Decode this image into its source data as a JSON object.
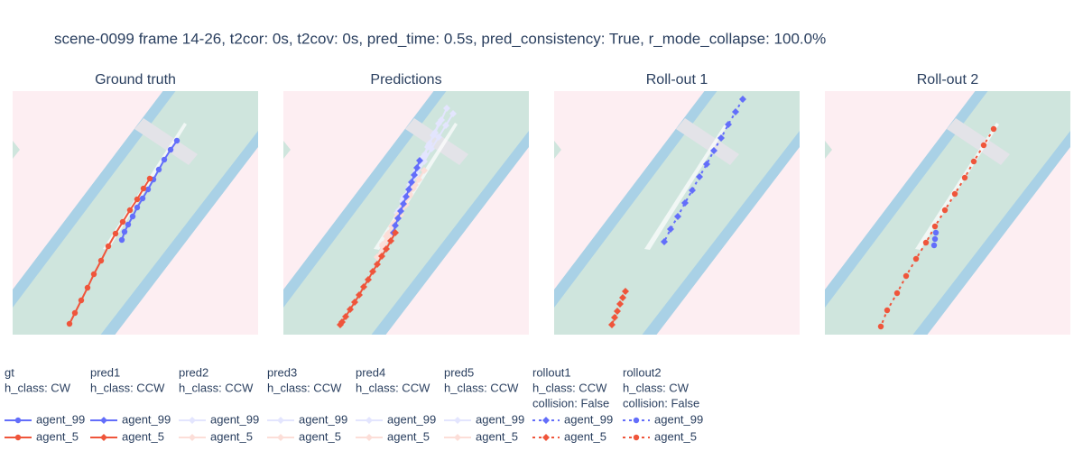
{
  "title": "scene-0099 frame 14-26, t2cor: 0s, t2cov: 0s, pred_time: 0.5s, pred_consistency: True, r_mode_collapse: 100.0%",
  "subplots": [
    {
      "title": "Ground truth",
      "xlim": [
        0,
        272
      ],
      "ylim": [
        270,
        0
      ],
      "series": [
        {
          "name": "agent_99",
          "color": "#636efa",
          "dash": "solid",
          "symbol": "circle",
          "x": [
            182,
            175,
            168,
            162,
            156,
            150,
            144,
            138,
            133,
            128,
            124,
            121
          ],
          "y": [
            55,
            65,
            76,
            87,
            98,
            109,
            119,
            129,
            139,
            148,
            156,
            165
          ]
        },
        {
          "name": "agent_5",
          "color": "#ef553b",
          "dash": "solid",
          "symbol": "circle",
          "x": [
            152,
            145,
            138,
            130,
            122,
            114,
            106,
            98,
            90,
            83,
            76,
            69,
            63
          ],
          "y": [
            97,
            108,
            120,
            132,
            145,
            158,
            172,
            188,
            203,
            218,
            232,
            246,
            258
          ]
        }
      ]
    },
    {
      "title": "Predictions",
      "xlim": [
        0,
        272
      ],
      "ylim": [
        270,
        0
      ],
      "series": [
        {
          "name": "agent_99",
          "color": "#e3e5fe",
          "dash": "solid",
          "symbol": "diamond",
          "x": [
            181,
            175,
            168,
            161,
            154,
            147,
            140,
            133,
            126
          ],
          "y": [
            19,
            32,
            46,
            60,
            74,
            89,
            104,
            119,
            135
          ]
        },
        {
          "name": "agent_99",
          "color": "#e3e5fe",
          "dash": "solid",
          "symbol": "diamond",
          "x": [
            172,
            166,
            160,
            153,
            147,
            141,
            134,
            128
          ],
          "y": [
            36,
            49,
            62,
            75,
            89,
            103,
            117,
            132
          ]
        },
        {
          "name": "agent_99",
          "color": "#e3e5fe",
          "dash": "solid",
          "symbol": "diamond",
          "x": [
            162,
            157,
            151,
            145,
            139,
            133,
            127
          ],
          "y": [
            58,
            70,
            82,
            95,
            108,
            121,
            135
          ]
        },
        {
          "name": "agent_99",
          "color": "#e3e5fe",
          "dash": "solid",
          "symbol": "diamond",
          "x": [
            188,
            180,
            172,
            164,
            156,
            148,
            140,
            132
          ],
          "y": [
            25,
            38,
            51,
            64,
            78,
            92,
            107,
            122
          ]
        },
        {
          "name": "agent_5",
          "color": "#fcded8",
          "dash": "solid",
          "symbol": "diamond",
          "x": [
            156,
            150,
            144,
            138,
            132,
            126,
            120,
            114
          ],
          "y": [
            88,
            98,
            108,
            118,
            128,
            139,
            150,
            161
          ]
        },
        {
          "name": "agent_5",
          "color": "#fcded8",
          "dash": "solid",
          "symbol": "diamond",
          "x": [
            146,
            140,
            134,
            128,
            122,
            116,
            110
          ],
          "y": [
            104,
            114,
            125,
            136,
            147,
            158,
            170
          ]
        },
        {
          "name": "agent_5",
          "color": "#fcded8",
          "dash": "solid",
          "symbol": "diamond",
          "x": [
            140,
            134,
            128,
            122,
            116,
            110,
            104
          ],
          "y": [
            116,
            127,
            138,
            149,
            160,
            172,
            184
          ]
        },
        {
          "name": "agent_5",
          "color": "#fcded8",
          "dash": "solid",
          "symbol": "diamond",
          "x": [
            136,
            130,
            124,
            118,
            112,
            106
          ],
          "y": [
            126,
            137,
            148,
            160,
            172,
            184
          ]
        },
        {
          "name": "agent_99",
          "color": "#636efa",
          "dash": "solid",
          "symbol": "diamond",
          "x": [
            151,
            148,
            145,
            142,
            139,
            136,
            133,
            130,
            127,
            124,
            122
          ],
          "y": [
            77,
            85,
            93,
            101,
            109,
            117,
            125,
            133,
            141,
            149,
            157
          ]
        },
        {
          "name": "agent_5",
          "color": "#ef553b",
          "dash": "solid",
          "symbol": "diamond",
          "x": [
            124,
            119,
            114,
            109,
            104,
            99,
            94,
            89,
            84,
            79,
            74,
            69,
            65,
            63
          ],
          "y": [
            157,
            166,
            175,
            183,
            192,
            200,
            209,
            217,
            226,
            234,
            242,
            250,
            256,
            259
          ]
        }
      ]
    },
    {
      "title": "Roll-out 1",
      "xlim": [
        0,
        272
      ],
      "ylim": [
        270,
        0
      ],
      "series": [
        {
          "name": "agent_99",
          "color": "#636efa",
          "dash": "dot",
          "symbol": "diamond",
          "x": [
            209,
            201,
            193,
            185,
            177,
            169,
            161,
            153,
            145,
            137,
            129,
            122
          ],
          "y": [
            9,
            23,
            37,
            52,
            66,
            81,
            95,
            110,
            124,
            139,
            153,
            167
          ]
        },
        {
          "name": "agent_5",
          "color": "#ef553b",
          "dash": "dot",
          "symbol": "diamond",
          "x": [
            79,
            76,
            73,
            70,
            67,
            64
          ],
          "y": [
            222,
            229,
            236,
            244,
            251,
            259
          ]
        }
      ]
    },
    {
      "title": "Roll-out 2",
      "xlim": [
        0,
        272
      ],
      "ylim": [
        270,
        0
      ],
      "series": [
        {
          "name": "agent_99",
          "color": "#636efa",
          "dash": "dot",
          "symbol": "circle",
          "x": [
            123,
            122,
            121
          ],
          "y": [
            157,
            164,
            171
          ]
        },
        {
          "name": "agent_5",
          "color": "#ef553b",
          "dash": "dot",
          "symbol": "circle",
          "x": [
            187,
            176,
            165,
            155,
            144,
            133,
            122,
            112,
            101,
            90,
            80,
            69,
            62
          ],
          "y": [
            42,
            60,
            78,
            96,
            114,
            132,
            150,
            168,
            186,
            205,
            224,
            243,
            261
          ]
        }
      ]
    }
  ],
  "legend": [
    {
      "title": [
        "gt",
        "h_class: CW"
      ],
      "items": [
        {
          "name": "agent_99",
          "color": "#636efa",
          "dash": "solid",
          "symbol": "circle"
        },
        {
          "name": "agent_5",
          "color": "#ef553b",
          "dash": "solid",
          "symbol": "circle"
        }
      ]
    },
    {
      "title": [
        "pred1",
        "h_class: CCW"
      ],
      "items": [
        {
          "name": "agent_99",
          "color": "#636efa",
          "dash": "solid",
          "symbol": "diamond"
        },
        {
          "name": "agent_5",
          "color": "#ef553b",
          "dash": "solid",
          "symbol": "diamond"
        }
      ]
    },
    {
      "title": [
        "pred2",
        "h_class: CCW"
      ],
      "items": [
        {
          "name": "agent_99",
          "color": "#e3e5fe",
          "dash": "solid",
          "symbol": "diamond"
        },
        {
          "name": "agent_5",
          "color": "#fcded8",
          "dash": "solid",
          "symbol": "diamond"
        }
      ]
    },
    {
      "title": [
        "pred3",
        "h_class: CCW"
      ],
      "items": [
        {
          "name": "agent_99",
          "color": "#e3e5fe",
          "dash": "solid",
          "symbol": "diamond"
        },
        {
          "name": "agent_5",
          "color": "#fcded8",
          "dash": "solid",
          "symbol": "diamond"
        }
      ]
    },
    {
      "title": [
        "pred4",
        "h_class: CCW"
      ],
      "items": [
        {
          "name": "agent_99",
          "color": "#e3e5fe",
          "dash": "solid",
          "symbol": "diamond"
        },
        {
          "name": "agent_5",
          "color": "#fcded8",
          "dash": "solid",
          "symbol": "diamond"
        }
      ]
    },
    {
      "title": [
        "pred5",
        "h_class: CCW"
      ],
      "items": [
        {
          "name": "agent_99",
          "color": "#e3e5fe",
          "dash": "solid",
          "symbol": "diamond"
        },
        {
          "name": "agent_5",
          "color": "#fcded8",
          "dash": "solid",
          "symbol": "diamond"
        }
      ]
    },
    {
      "title": [
        "rollout1",
        "h_class: CCW",
        "collision: False"
      ],
      "items": [
        {
          "name": "agent_99",
          "color": "#636efa",
          "dash": "dot",
          "symbol": "diamond"
        },
        {
          "name": "agent_5",
          "color": "#ef553b",
          "dash": "dot",
          "symbol": "diamond"
        }
      ]
    },
    {
      "title": [
        "rollout2",
        "h_class: CW",
        "collision: False"
      ],
      "items": [
        {
          "name": "agent_99",
          "color": "#636efa",
          "dash": "dot",
          "symbol": "circle"
        },
        {
          "name": "agent_5",
          "color": "#ef553b",
          "dash": "dot",
          "symbol": "circle"
        }
      ]
    }
  ]
}
